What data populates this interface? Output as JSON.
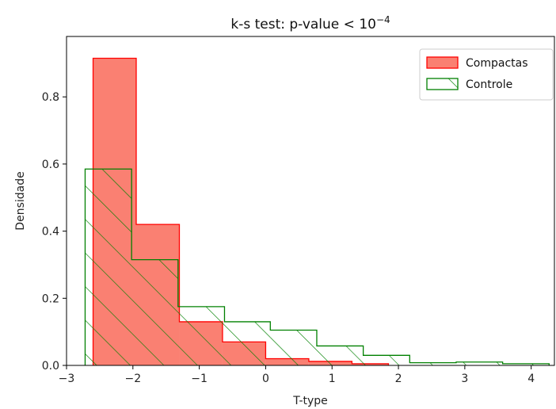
{
  "chart_data": {
    "type": "histogram",
    "title": "k-s test: p-value < 10",
    "title_exponent": "−4",
    "xlabel": "T-type",
    "ylabel": "Densidade",
    "xlim": [
      -3.0,
      4.35
    ],
    "ylim": [
      0,
      0.98
    ],
    "x_ticks": [
      -3,
      -2,
      -1,
      0,
      1,
      2,
      3,
      4
    ],
    "x_tick_labels": [
      "−3",
      "−2",
      "−1",
      "0",
      "1",
      "2",
      "3",
      "4"
    ],
    "y_ticks": [
      0.0,
      0.2,
      0.4,
      0.6,
      0.8
    ],
    "y_tick_labels": [
      "0.0",
      "0.2",
      "0.4",
      "0.6",
      "0.8"
    ],
    "grid": false,
    "legend_position": "top-right",
    "series": [
      {
        "name": "Compactas",
        "style": "filled",
        "fill_color": "#fa8072",
        "edge_color": "#ff0000",
        "bin_edges": [
          -2.6,
          -1.95,
          -1.3,
          -0.65,
          0.0,
          0.65,
          1.3,
          1.85
        ],
        "values": [
          0.915,
          0.42,
          0.13,
          0.07,
          0.02,
          0.012,
          0.005
        ]
      },
      {
        "name": "Controle",
        "style": "hatched",
        "fill_color": "none",
        "edge_color": "#008000",
        "hatch": "/",
        "bin_edges": [
          -2.72,
          -2.02,
          -1.32,
          -0.62,
          0.07,
          0.77,
          1.47,
          2.17,
          2.87,
          3.57,
          4.27
        ],
        "values": [
          0.585,
          0.315,
          0.175,
          0.13,
          0.105,
          0.058,
          0.03,
          0.008,
          0.01,
          0.005
        ]
      }
    ]
  }
}
